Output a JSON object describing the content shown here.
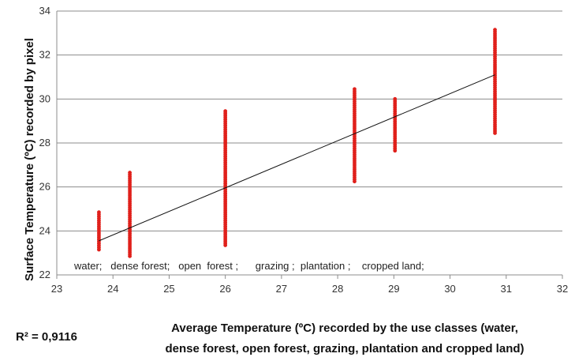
{
  "chart_data": {
    "type": "scatter",
    "title": "",
    "xlabel_lines": [
      "Average Temperature (ºC) recorded by the use classes (water,",
      "dense forest, open forest, grazing, plantation and cropped land)"
    ],
    "ylabel": "Surface Temperature (ºC) recorded by pixel",
    "xlim": [
      23,
      32
    ],
    "ylim": [
      22,
      34
    ],
    "x_ticks": [
      "23",
      "24",
      "25",
      "26",
      "27",
      "28",
      "29",
      "30",
      "31",
      "32"
    ],
    "y_ticks": [
      "22",
      "24",
      "26",
      "28",
      "30",
      "32",
      "34"
    ],
    "grid": "horizontal",
    "marker_color": "#e0201b",
    "trend_color": "#111111",
    "r_squared_text": "R² = 0,9116",
    "class_labels_text": "water;   dense forest;   open  forest ;      grazing ;  plantation ;    cropped land;",
    "series": [
      {
        "x": 23.75,
        "y_min": 23.15,
        "y_max": 24.85
      },
      {
        "x": 24.3,
        "y_min": 22.85,
        "y_max": 26.65
      },
      {
        "x": 26.0,
        "y_min": 23.35,
        "y_max": 29.45
      },
      {
        "x": 28.3,
        "y_min": 26.25,
        "y_max": 30.45
      },
      {
        "x": 29.02,
        "y_min": 27.65,
        "y_max": 30.0
      },
      {
        "x": 30.8,
        "y_min": 28.45,
        "y_max": 33.15
      }
    ],
    "trendline": {
      "x": [
        23.75,
        30.8
      ],
      "y": [
        23.55,
        31.1
      ]
    }
  }
}
